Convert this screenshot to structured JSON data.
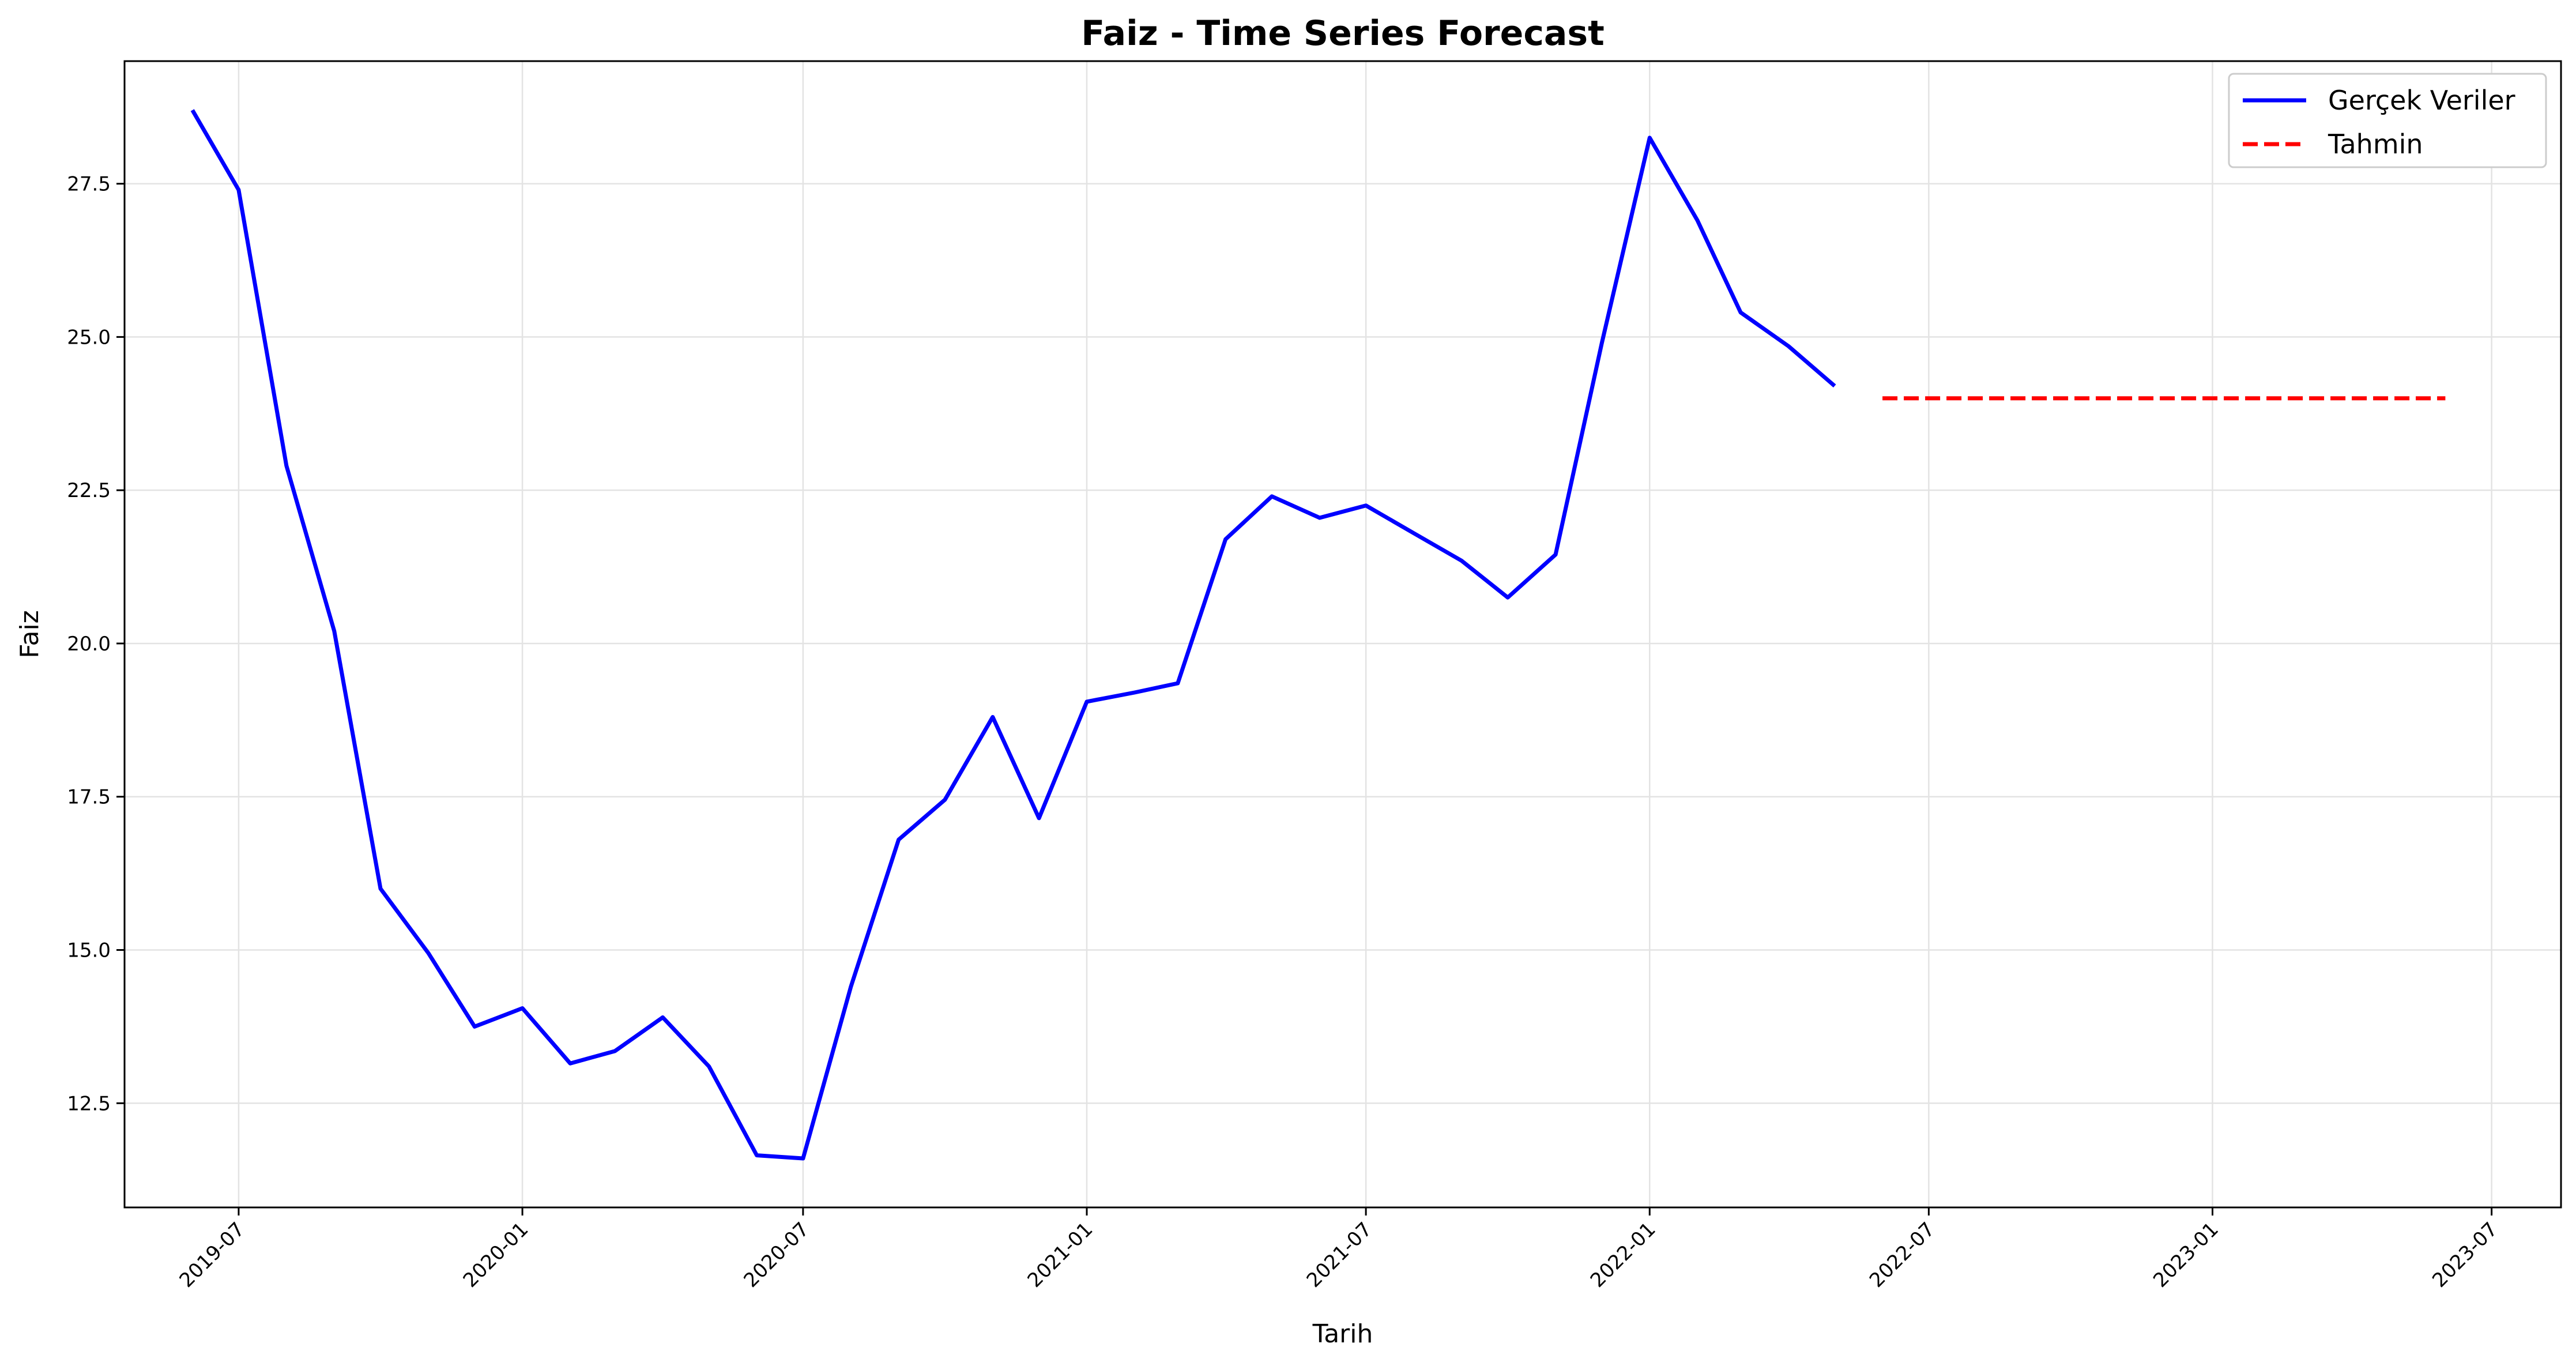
{
  "chart_data": {
    "type": "line",
    "title": "Faiz - Time Series Forecast",
    "xlabel": "Tarih",
    "ylabel": "Faiz",
    "x_ticks": [
      "2019-07",
      "2020-01",
      "2020-07",
      "2021-01",
      "2021-07",
      "2022-01",
      "2022-07",
      "2023-01",
      "2023-07"
    ],
    "y_ticks": [
      "12.5",
      "15.0",
      "17.5",
      "20.0",
      "22.5",
      "25.0",
      "27.5"
    ],
    "xlim": [
      "2019-04-18",
      "2023-08-15"
    ],
    "ylim": [
      10.8,
      29.5
    ],
    "grid": true,
    "legend_position": "top-right",
    "series": [
      {
        "name": "Gerçek Veriler",
        "color": "#0000ff",
        "style": "solid",
        "x": [
          "2019-06-01",
          "2019-07-01",
          "2019-08-01",
          "2019-09-01",
          "2019-10-01",
          "2019-11-01",
          "2019-12-01",
          "2020-01-01",
          "2020-02-01",
          "2020-03-01",
          "2020-04-01",
          "2020-05-01",
          "2020-06-01",
          "2020-07-01",
          "2020-08-01",
          "2020-09-01",
          "2020-10-01",
          "2020-11-01",
          "2020-12-01",
          "2021-01-01",
          "2021-02-01",
          "2021-03-01",
          "2021-04-01",
          "2021-05-01",
          "2021-06-01",
          "2021-07-01",
          "2021-08-01",
          "2021-09-01",
          "2021-10-01",
          "2021-11-01",
          "2021-12-01",
          "2022-01-01",
          "2022-02-01",
          "2022-03-01",
          "2022-04-01",
          "2022-05-01"
        ],
        "values": [
          28.7,
          27.4,
          22.9,
          20.2,
          16.0,
          14.95,
          13.75,
          14.05,
          13.15,
          13.35,
          13.9,
          13.1,
          11.65,
          11.6,
          14.4,
          16.8,
          17.45,
          18.8,
          17.15,
          19.05,
          19.2,
          19.35,
          21.7,
          22.4,
          22.05,
          22.25,
          21.8,
          21.35,
          20.75,
          21.45,
          24.9,
          28.25,
          26.9,
          25.4,
          24.85,
          24.2
        ],
        "segments": [
          {
            "x": [
              "2019-06-01",
              "2019-07-01"
            ],
            "values": [
              28.7,
              27.4
            ]
          }
        ]
      },
      {
        "name": "Tahmin",
        "color": "#ff0000",
        "style": "dashed",
        "x": [
          "2022-06-01",
          "2022-07-01",
          "2022-08-01",
          "2022-09-01",
          "2022-10-01",
          "2022-11-01",
          "2022-12-01",
          "2023-01-01",
          "2023-02-01",
          "2023-03-01",
          "2023-04-01",
          "2023-05-01",
          "2023-06-01"
        ],
        "values": [
          24.0,
          24.0,
          24.0,
          24.0,
          24.0,
          24.0,
          24.0,
          24.0,
          24.0,
          24.0,
          24.0,
          24.0,
          24.0
        ]
      }
    ]
  }
}
